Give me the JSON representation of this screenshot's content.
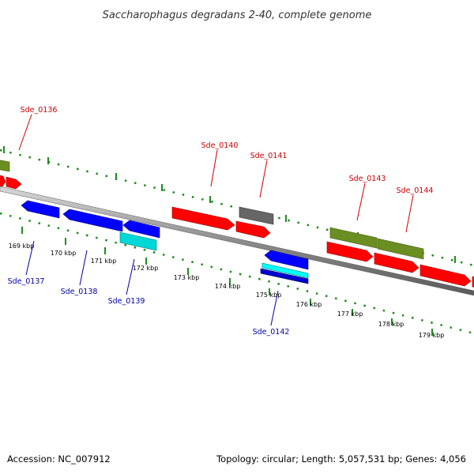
{
  "title": "Saccharophagus degradans 2-40, complete genome",
  "footer": {
    "accession": "Accession: NC_007912",
    "info": "Topology: circular; Length: 5,057,531 bp; Genes: 4,056"
  },
  "colors": {
    "forward_cds": "#ff0000",
    "reverse_cds": "#0000ff",
    "rna": "#00e5e5",
    "other_forward": "#6b8e23",
    "other_gray": "#666666",
    "ticks": "#228b22",
    "backbone": "#808080",
    "label_forward": "#cc0000",
    "label_reverse": "#0000aa"
  },
  "ticks": [
    {
      "label": "169 kbp"
    },
    {
      "label": "170 kbp"
    },
    {
      "label": "171 kbp"
    },
    {
      "label": "172 kbp"
    },
    {
      "label": "173 kbp"
    },
    {
      "label": "174 kbp"
    },
    {
      "label": "175 kbp"
    },
    {
      "label": "176 kbp"
    },
    {
      "label": "177 kbp"
    },
    {
      "label": "178 kbp"
    },
    {
      "label": "179 kbp"
    }
  ],
  "genes_forward": [
    {
      "label": "Sde_0136"
    },
    {
      "label": "Sde_0140"
    },
    {
      "label": "Sde_0141"
    },
    {
      "label": "Sde_0143"
    },
    {
      "label": "Sde_0144"
    }
  ],
  "genes_reverse": [
    {
      "label": "Sde_0137"
    },
    {
      "label": "Sde_0138"
    },
    {
      "label": "Sde_0139"
    },
    {
      "label": "Sde_0142"
    }
  ]
}
